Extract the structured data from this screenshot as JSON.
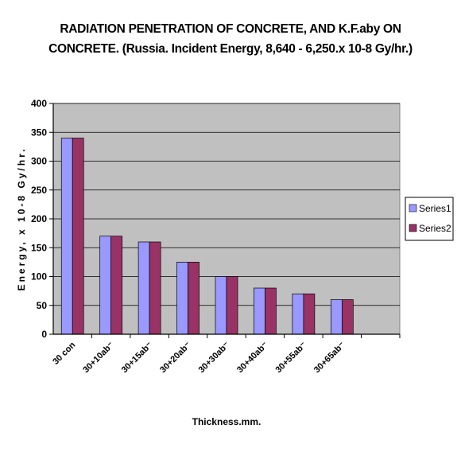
{
  "chart_data": {
    "type": "bar",
    "title_lines": [
      "RADIATION PENETRATION OF CONCRETE, AND K.F.aby ON",
      "CONCRETE. (Russia. Incident Energy, 8,640 - 6,250.x 10-8 Gy/hr.)"
    ],
    "xlabel": "Thickness.mm.",
    "ylabel": "Energy, x 10-8 Gy/hr.",
    "categories": [
      "30 con",
      "30+10ab⁻",
      "30+15ab⁻",
      "30+20ab⁻",
      "30+30ab⁻",
      "30+40ab⁻",
      "30+55ab⁻",
      "30+65ab⁻",
      ""
    ],
    "series": [
      {
        "name": "Series1",
        "values": [
          340,
          170,
          160,
          125,
          100,
          80,
          70,
          60,
          null
        ]
      },
      {
        "name": "Series2",
        "values": [
          340,
          170,
          160,
          125,
          100,
          80,
          70,
          60,
          null
        ]
      }
    ],
    "ylim": [
      0,
      400
    ],
    "yticks": [
      "0",
      "50",
      "100",
      "150",
      "200",
      "250",
      "300",
      "350",
      "400"
    ],
    "grid": true,
    "legend_position": "right",
    "colors": {
      "plot_area": "#c0c0c0",
      "series1": "#9999ff",
      "series2": "#993366",
      "gridline": "#000000"
    }
  }
}
